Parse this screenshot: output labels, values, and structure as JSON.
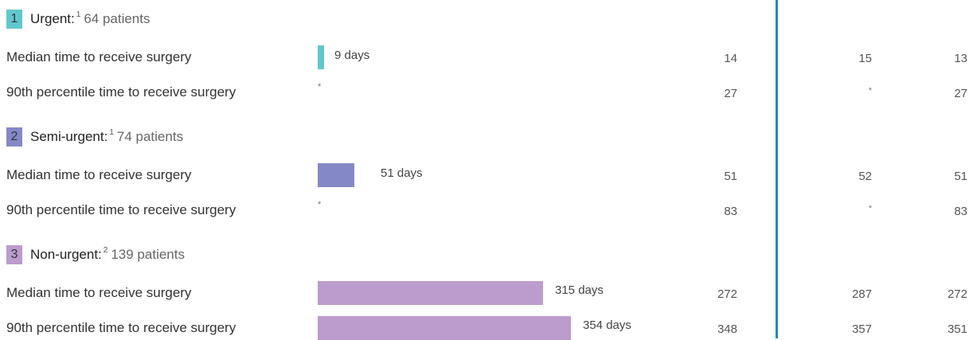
{
  "colors": {
    "urgent": "#62c7cd",
    "semi_urgent": "#8489c6",
    "non_urgent": "#bb9ccd",
    "divider": "#1f8cb0"
  },
  "chart_data": {
    "type": "bar",
    "units": "days",
    "groups": [
      {
        "number": "1",
        "name": "Urgent:",
        "footnote": "1",
        "count": "64 patients",
        "rows": [
          {
            "label": "Median time to receive surgery",
            "value": 9,
            "value_label": "9 days",
            "col1": "14",
            "col2": "15",
            "col3": "13"
          },
          {
            "label": "90th percentile time to receive surgery",
            "value": null,
            "value_label": "*",
            "col1": "27",
            "col2": "*",
            "col3": "27"
          }
        ]
      },
      {
        "number": "2",
        "name": "Semi-urgent:",
        "footnote": "1",
        "count": "74 patients",
        "rows": [
          {
            "label": "Median time to receive surgery",
            "value": 51,
            "value_label": "51 days",
            "col1": "51",
            "col2": "52",
            "col3": "51"
          },
          {
            "label": "90th percentile time to receive surgery",
            "value": null,
            "value_label": "*",
            "col1": "83",
            "col2": "*",
            "col3": "83"
          }
        ]
      },
      {
        "number": "3",
        "name": "Non-urgent:",
        "footnote": "2",
        "count": "139 patients",
        "rows": [
          {
            "label": "Median time to receive surgery",
            "value": 315,
            "value_label": "315 days",
            "col1": "272",
            "col2": "287",
            "col3": "272"
          },
          {
            "label": "90th percentile time to receive surgery",
            "value": 354,
            "value_label": "354 days",
            "col1": "348",
            "col2": "357",
            "col3": "351"
          }
        ]
      }
    ]
  }
}
